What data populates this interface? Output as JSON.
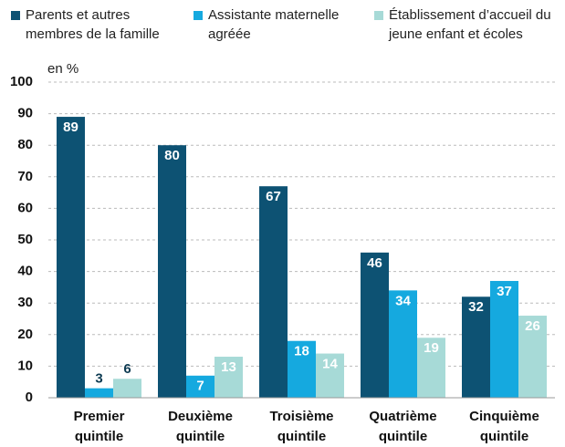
{
  "chart_data": {
    "type": "bar",
    "y_label": "en %",
    "categories": [
      "Premier quintile",
      "Deuxième quintile",
      "Troisième quintile",
      "Quatrième quintile",
      "Cinquième quintile"
    ],
    "series": [
      {
        "name": "Parents et autres membres de la famille",
        "color": "#0d5273",
        "values": [
          89,
          80,
          67,
          46,
          32
        ]
      },
      {
        "name": "Assistante maternelle agréée",
        "color": "#15a9df",
        "values": [
          3,
          7,
          18,
          34,
          37
        ]
      },
      {
        "name": "Établissement d’accueil du jeune enfant et écoles",
        "color": "#a7dad7",
        "values": [
          6,
          13,
          14,
          19,
          26
        ]
      }
    ],
    "ylim": [
      0,
      100
    ],
    "yticks": [
      0,
      10,
      20,
      30,
      40,
      50,
      60,
      70,
      80,
      90,
      100
    ],
    "grid": true
  }
}
